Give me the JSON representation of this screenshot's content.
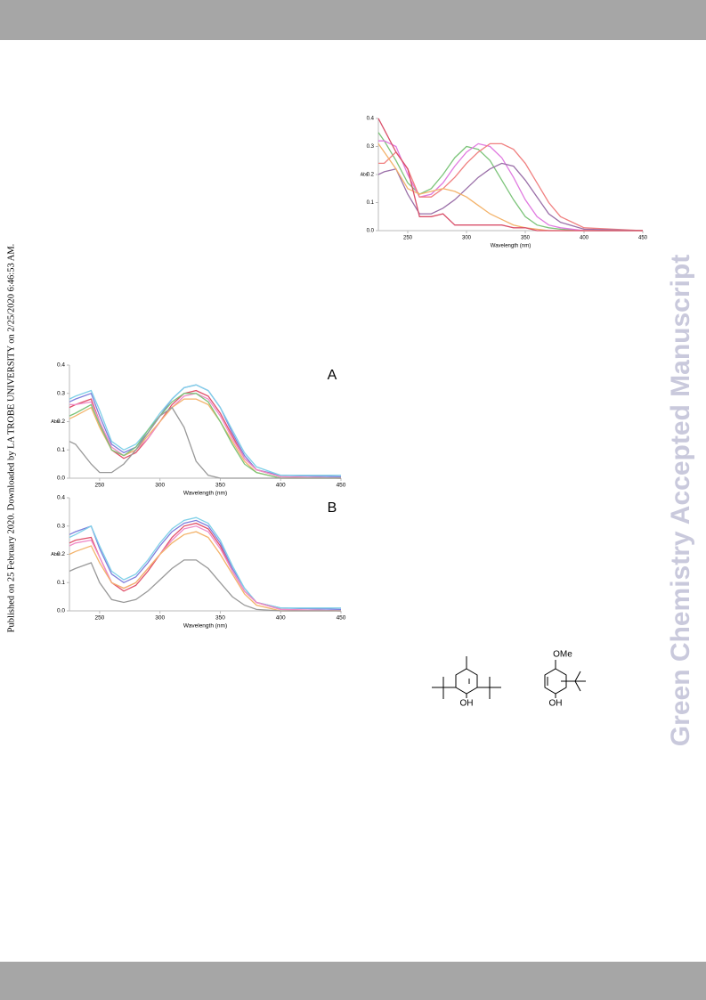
{
  "side_note": "Published on 25 February 2020. Downloaded by LA TROBE UNIVERSITY on 2/25/2020 6:46:53 AM.",
  "watermark": "Green Chemistry Accepted Manuscript",
  "structures": [
    {
      "labels": [
        "OH"
      ]
    },
    {
      "labels": [
        "OMe",
        "OH"
      ]
    }
  ],
  "chart_data": [
    {
      "type": "line",
      "x_label": "Wavelength (nm)",
      "y_label": "Abs",
      "x": [
        225,
        230,
        240,
        250,
        260,
        270,
        280,
        290,
        300,
        310,
        320,
        330,
        340,
        350,
        360,
        370,
        380,
        400,
        450
      ],
      "xlim": [
        225,
        450
      ],
      "xticks": [
        250,
        300,
        350,
        400,
        450
      ],
      "ylim": [
        0,
        0.4
      ],
      "yticks": [
        {
          "value": 0,
          "label": "0.0"
        },
        0.1,
        0.2,
        0.3,
        0.4
      ],
      "grid": false,
      "series": [
        {
          "color": "#7cc47a",
          "values": [
            0.35,
            0.32,
            0.25,
            0.17,
            0.13,
            0.15,
            0.2,
            0.26,
            0.3,
            0.29,
            0.25,
            0.18,
            0.11,
            0.05,
            0.02,
            0.01,
            0.005,
            0,
            0
          ]
        },
        {
          "color": "#e07ae0",
          "values": [
            0.32,
            0.32,
            0.3,
            0.2,
            0.12,
            0.13,
            0.17,
            0.23,
            0.28,
            0.31,
            0.3,
            0.26,
            0.19,
            0.11,
            0.05,
            0.02,
            0.01,
            0,
            0
          ]
        },
        {
          "color": "#f08080",
          "values": [
            0.24,
            0.24,
            0.28,
            0.22,
            0.12,
            0.12,
            0.15,
            0.19,
            0.24,
            0.28,
            0.31,
            0.31,
            0.29,
            0.24,
            0.17,
            0.1,
            0.05,
            0.01,
            0
          ]
        },
        {
          "color": "#9a6fa8",
          "values": [
            0.2,
            0.21,
            0.22,
            0.13,
            0.06,
            0.06,
            0.08,
            0.11,
            0.15,
            0.19,
            0.22,
            0.24,
            0.23,
            0.18,
            0.12,
            0.06,
            0.03,
            0.005,
            0
          ]
        },
        {
          "color": "#f3b36b",
          "values": [
            0.31,
            0.28,
            0.22,
            0.15,
            0.13,
            0.14,
            0.15,
            0.14,
            0.12,
            0.09,
            0.06,
            0.04,
            0.02,
            0.01,
            0.005,
            0,
            0,
            0,
            0
          ]
        },
        {
          "color": "#d9506a",
          "values": [
            0.4,
            0.36,
            0.28,
            0.22,
            0.05,
            0.05,
            0.06,
            0.02,
            0.02,
            0.02,
            0.02,
            0.02,
            0.01,
            0.01,
            0,
            0,
            0,
            0,
            0
          ]
        }
      ]
    },
    {
      "type": "line",
      "label": "A",
      "x_label": "Wavelength (nm)",
      "y_label": "Abs",
      "x": [
        225,
        230,
        243,
        250,
        260,
        270,
        280,
        290,
        300,
        310,
        320,
        330,
        340,
        350,
        360,
        370,
        380,
        400,
        450
      ],
      "xlim": [
        225,
        450
      ],
      "xticks": [
        250,
        300,
        350,
        400,
        450
      ],
      "ylim": [
        0,
        0.4
      ],
      "yticks": [
        {
          "value": 0,
          "label": "0.0"
        },
        0.1,
        0.2,
        0.3,
        0.4
      ],
      "grid": false,
      "series": [
        {
          "color": "#7d7ddc",
          "values": [
            0.27,
            0.28,
            0.3,
            0.22,
            0.12,
            0.09,
            0.11,
            0.16,
            0.22,
            0.28,
            0.32,
            0.33,
            0.31,
            0.25,
            0.16,
            0.08,
            0.03,
            0.01,
            0.005
          ]
        },
        {
          "color": "#7fd0e8",
          "values": [
            0.28,
            0.29,
            0.31,
            0.24,
            0.13,
            0.1,
            0.12,
            0.17,
            0.23,
            0.28,
            0.32,
            0.33,
            0.31,
            0.25,
            0.17,
            0.09,
            0.04,
            0.01,
            0.01
          ]
        },
        {
          "color": "#e0506a",
          "values": [
            0.25,
            0.26,
            0.28,
            0.2,
            0.1,
            0.07,
            0.09,
            0.14,
            0.2,
            0.26,
            0.3,
            0.31,
            0.29,
            0.23,
            0.15,
            0.07,
            0.03,
            0.005,
            0
          ]
        },
        {
          "color": "#f08cc8",
          "values": [
            0.26,
            0.26,
            0.27,
            0.2,
            0.11,
            0.08,
            0.1,
            0.14,
            0.2,
            0.25,
            0.29,
            0.3,
            0.28,
            0.22,
            0.14,
            0.07,
            0.03,
            0.005,
            0
          ]
        },
        {
          "color": "#f3b36b",
          "values": [
            0.21,
            0.22,
            0.25,
            0.18,
            0.1,
            0.08,
            0.1,
            0.15,
            0.2,
            0.25,
            0.28,
            0.28,
            0.26,
            0.2,
            0.13,
            0.06,
            0.02,
            0,
            0
          ]
        },
        {
          "color": "#7cc47a",
          "values": [
            0.22,
            0.23,
            0.26,
            0.19,
            0.1,
            0.08,
            0.11,
            0.17,
            0.22,
            0.27,
            0.3,
            0.3,
            0.27,
            0.2,
            0.12,
            0.05,
            0.02,
            0,
            0
          ]
        },
        {
          "color": "#999999",
          "values": [
            0.13,
            0.12,
            0.05,
            0.02,
            0.02,
            0.05,
            0.1,
            0.16,
            0.22,
            0.25,
            0.18,
            0.06,
            0.01,
            0,
            0,
            0,
            0,
            0,
            0
          ]
        }
      ]
    },
    {
      "type": "line",
      "label": "B",
      "x_label": "Wavelength (nm)",
      "y_label": "Abs",
      "x": [
        225,
        230,
        243,
        250,
        260,
        270,
        280,
        290,
        300,
        310,
        320,
        330,
        340,
        350,
        360,
        370,
        380,
        400,
        450
      ],
      "xlim": [
        225,
        450
      ],
      "xticks": [
        250,
        300,
        350,
        400,
        450
      ],
      "ylim": [
        0,
        0.4
      ],
      "yticks": [
        {
          "value": 0,
          "label": "0.0"
        },
        0.1,
        0.2,
        0.3,
        0.4
      ],
      "grid": false,
      "series": [
        {
          "color": "#7d7ddc",
          "values": [
            0.27,
            0.28,
            0.3,
            0.22,
            0.13,
            0.1,
            0.12,
            0.17,
            0.23,
            0.28,
            0.31,
            0.32,
            0.3,
            0.24,
            0.15,
            0.08,
            0.03,
            0.01,
            0.005
          ]
        },
        {
          "color": "#7fd0e8",
          "values": [
            0.26,
            0.27,
            0.3,
            0.23,
            0.14,
            0.11,
            0.13,
            0.18,
            0.24,
            0.29,
            0.32,
            0.33,
            0.31,
            0.25,
            0.16,
            0.08,
            0.03,
            0.01,
            0.01
          ]
        },
        {
          "color": "#e0506a",
          "values": [
            0.24,
            0.25,
            0.26,
            0.19,
            0.1,
            0.07,
            0.09,
            0.14,
            0.2,
            0.26,
            0.3,
            0.31,
            0.29,
            0.23,
            0.14,
            0.07,
            0.03,
            0.005,
            0
          ]
        },
        {
          "color": "#f08cc8",
          "values": [
            0.23,
            0.24,
            0.25,
            0.19,
            0.1,
            0.08,
            0.1,
            0.15,
            0.2,
            0.25,
            0.29,
            0.3,
            0.28,
            0.22,
            0.14,
            0.07,
            0.03,
            0.005,
            0
          ]
        },
        {
          "color": "#f3b36b",
          "values": [
            0.2,
            0.21,
            0.23,
            0.17,
            0.1,
            0.08,
            0.1,
            0.15,
            0.2,
            0.24,
            0.27,
            0.28,
            0.26,
            0.2,
            0.13,
            0.06,
            0.02,
            0,
            0
          ]
        },
        {
          "color": "#999999",
          "values": [
            0.14,
            0.15,
            0.17,
            0.1,
            0.04,
            0.03,
            0.04,
            0.07,
            0.11,
            0.15,
            0.18,
            0.18,
            0.15,
            0.1,
            0.05,
            0.02,
            0.005,
            0,
            0
          ]
        }
      ]
    }
  ]
}
